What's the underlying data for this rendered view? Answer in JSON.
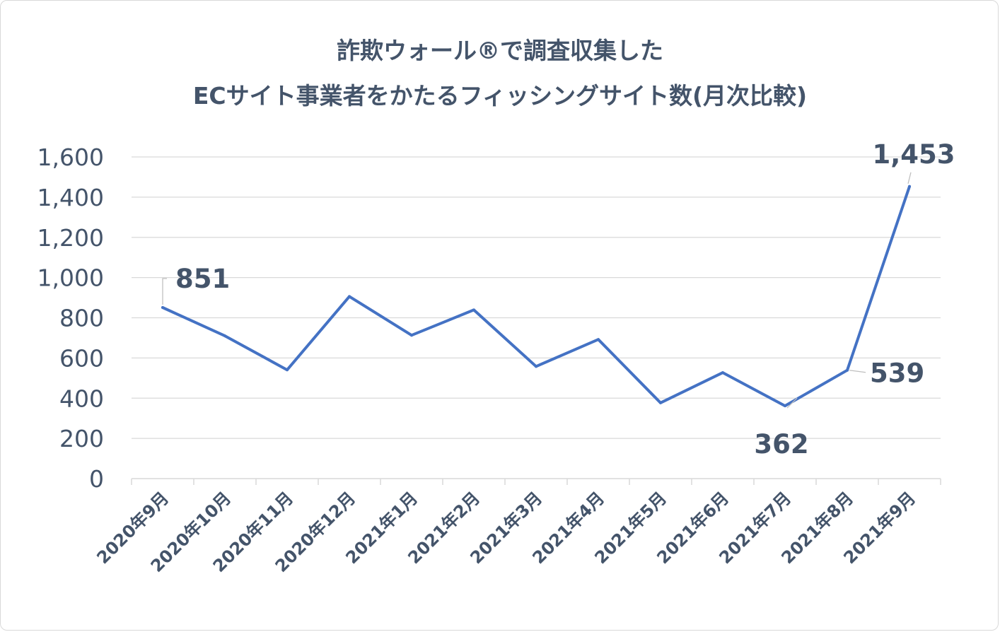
{
  "chart_data": {
    "type": "line",
    "title_line1": "詐欺ウォール®で調査収集した",
    "title_line2": "ECサイト事業者をかたるフィッシングサイト数(月次比較)",
    "categories": [
      "2020年9月",
      "2020年10月",
      "2020年11月",
      "2020年12月",
      "2021年1月",
      "2021年2月",
      "2021年3月",
      "2021年4月",
      "2021年5月",
      "2021年6月",
      "2021年7月",
      "2021年8月",
      "2021年9月"
    ],
    "values": [
      851,
      710,
      541,
      906,
      713,
      839,
      558,
      692,
      377,
      527,
      362,
      539,
      1453
    ],
    "ylim": [
      0,
      1600
    ],
    "yticks": [
      0,
      200,
      400,
      600,
      800,
      1000,
      1200,
      1400,
      1600
    ],
    "ytick_labels": [
      "0",
      "200",
      "400",
      "600",
      "800",
      "1,000",
      "1,200",
      "1,400",
      "1,600"
    ],
    "grid": true,
    "line_color": "#4472c4",
    "data_labels": [
      {
        "index": 0,
        "text": "851"
      },
      {
        "index": 10,
        "text": "362"
      },
      {
        "index": 11,
        "text": "539"
      },
      {
        "index": 12,
        "text": "1,453"
      }
    ]
  }
}
